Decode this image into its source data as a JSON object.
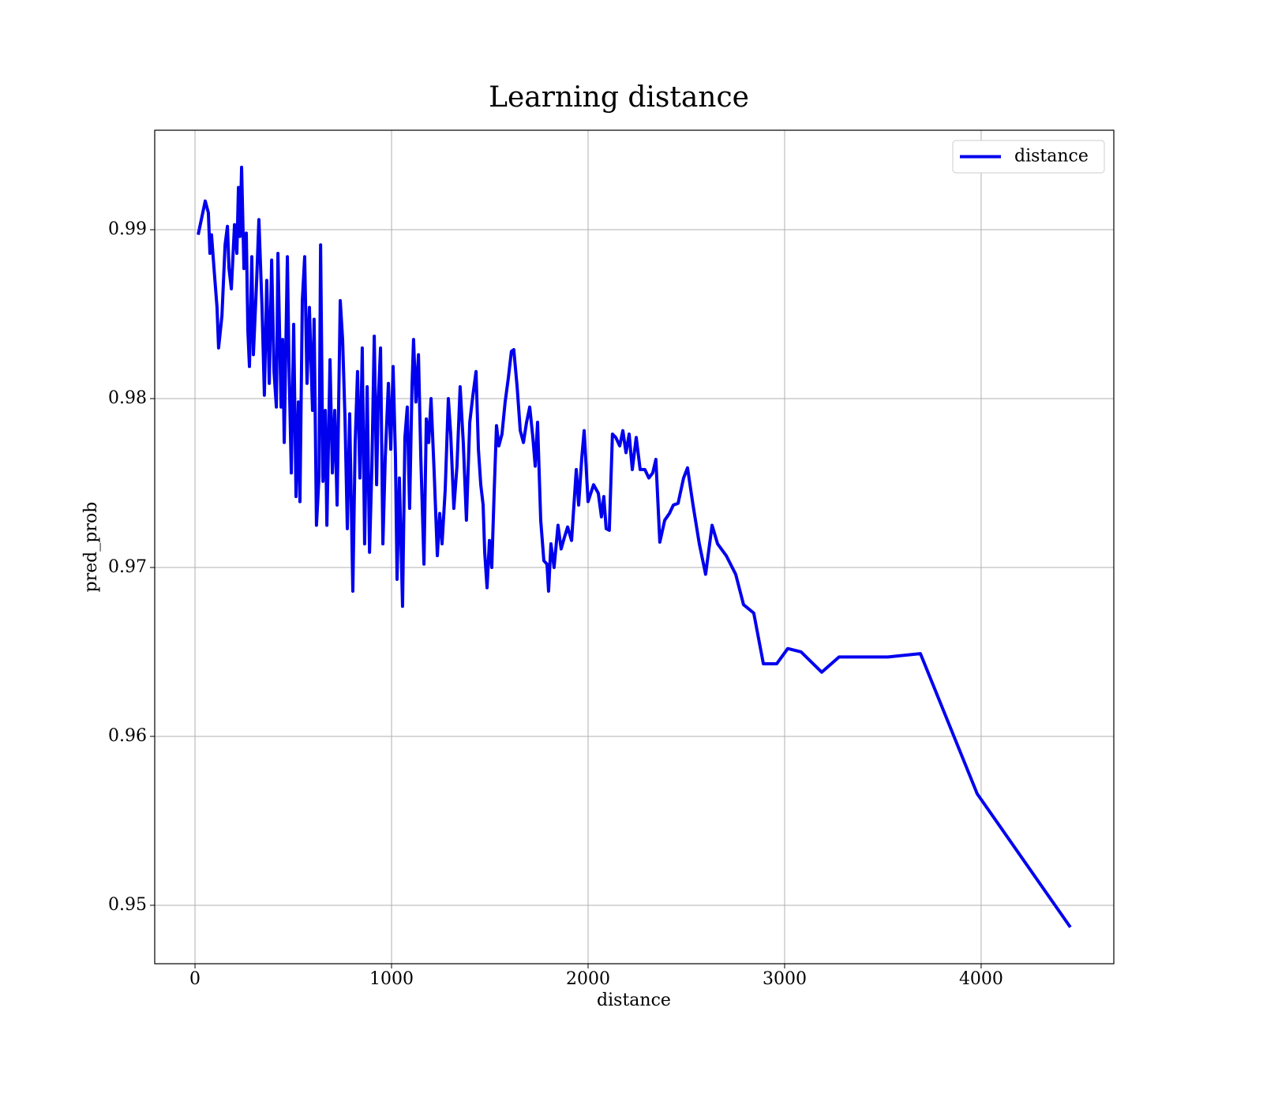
{
  "chart_data": {
    "type": "line",
    "title": "Learning distance",
    "x_label": "distance",
    "y_label": "pred_prob",
    "x": [
      16,
      52,
      68,
      76,
      84,
      100,
      112,
      120,
      137,
      153,
      165,
      173,
      185,
      201,
      213,
      221,
      229,
      237,
      249,
      261,
      269,
      277,
      289,
      297,
      313,
      325,
      341,
      353,
      365,
      378,
      390,
      402,
      414,
      422,
      438,
      446,
      454,
      470,
      478,
      490,
      502,
      514,
      526,
      534,
      546,
      558,
      570,
      582,
      598,
      606,
      618,
      631,
      639,
      651,
      663,
      671,
      687,
      699,
      711,
      723,
      739,
      751,
      763,
      775,
      787,
      803,
      815,
      827,
      839,
      851,
      863,
      876,
      888,
      900,
      912,
      924,
      932,
      944,
      956,
      968,
      984,
      996,
      1008,
      1020,
      1028,
      1040,
      1056,
      1068,
      1080,
      1092,
      1104,
      1112,
      1124,
      1137,
      1149,
      1165,
      1177,
      1189,
      1201,
      1217,
      1233,
      1245,
      1257,
      1273,
      1289,
      1301,
      1317,
      1333,
      1349,
      1365,
      1381,
      1398,
      1414,
      1430,
      1442,
      1454,
      1466,
      1474,
      1486,
      1498,
      1510,
      1522,
      1534,
      1546,
      1562,
      1578,
      1594,
      1610,
      1622,
      1639,
      1655,
      1671,
      1687,
      1703,
      1719,
      1731,
      1743,
      1759,
      1775,
      1791,
      1799,
      1811,
      1827,
      1847,
      1863,
      1880,
      1896,
      1916,
      1940,
      1952,
      1968,
      1980,
      2000,
      2028,
      2052,
      2068,
      2080,
      2092,
      2108,
      2124,
      2141,
      2161,
      2177,
      2193,
      2209,
      2225,
      2245,
      2265,
      2289,
      2309,
      2329,
      2345,
      2365,
      2390,
      2414,
      2434,
      2458,
      2486,
      2506,
      2534,
      2566,
      2598,
      2631,
      2659,
      2703,
      2751,
      2791,
      2843,
      2892,
      2960,
      3016,
      3084,
      3189,
      3277,
      3410,
      3526,
      3691,
      3980,
      4454
    ],
    "series": [
      {
        "name": "distance",
        "color": "#0000ee",
        "values": [
          0.9897,
          0.9917,
          0.991,
          0.9886,
          0.9897,
          0.9872,
          0.9854,
          0.983,
          0.9849,
          0.9891,
          0.9902,
          0.9877,
          0.9865,
          0.9903,
          0.9886,
          0.9925,
          0.9896,
          0.9937,
          0.9877,
          0.9898,
          0.984,
          0.9819,
          0.9884,
          0.9826,
          0.9868,
          0.9906,
          0.9854,
          0.9802,
          0.987,
          0.9809,
          0.9882,
          0.9816,
          0.9795,
          0.9886,
          0.9795,
          0.9835,
          0.9774,
          0.9884,
          0.9821,
          0.9756,
          0.9844,
          0.9742,
          0.9798,
          0.9739,
          0.9858,
          0.9884,
          0.9809,
          0.9854,
          0.9793,
          0.9847,
          0.9725,
          0.9754,
          0.9891,
          0.9751,
          0.9793,
          0.9725,
          0.9823,
          0.9756,
          0.9793,
          0.9737,
          0.9858,
          0.9835,
          0.9789,
          0.9723,
          0.9791,
          0.9686,
          0.9774,
          0.9816,
          0.9753,
          0.983,
          0.9714,
          0.9807,
          0.9709,
          0.976,
          0.9837,
          0.9749,
          0.9798,
          0.983,
          0.9714,
          0.9765,
          0.9809,
          0.977,
          0.9819,
          0.9765,
          0.9693,
          0.9753,
          0.9677,
          0.9777,
          0.9795,
          0.9735,
          0.9807,
          0.9835,
          0.9798,
          0.9826,
          0.9765,
          0.9702,
          0.9788,
          0.9774,
          0.98,
          0.9756,
          0.9707,
          0.9732,
          0.9714,
          0.9746,
          0.98,
          0.9779,
          0.9735,
          0.976,
          0.9807,
          0.9774,
          0.9728,
          0.9786,
          0.9802,
          0.9816,
          0.977,
          0.9749,
          0.9737,
          0.9709,
          0.9688,
          0.9716,
          0.97,
          0.9744,
          0.9784,
          0.9772,
          0.9779,
          0.9798,
          0.9812,
          0.9828,
          0.9829,
          0.9807,
          0.9781,
          0.9774,
          0.9786,
          0.9795,
          0.9777,
          0.976,
          0.9786,
          0.9728,
          0.9704,
          0.9702,
          0.9686,
          0.9714,
          0.97,
          0.9725,
          0.9711,
          0.9718,
          0.9724,
          0.9716,
          0.9758,
          0.9737,
          0.9765,
          0.9781,
          0.9739,
          0.9749,
          0.9744,
          0.973,
          0.9742,
          0.9723,
          0.9722,
          0.9779,
          0.9777,
          0.9772,
          0.9781,
          0.9768,
          0.9779,
          0.9758,
          0.9777,
          0.9758,
          0.9758,
          0.9753,
          0.9756,
          0.9764,
          0.9715,
          0.9728,
          0.9732,
          0.9737,
          0.9738,
          0.9753,
          0.9759,
          0.9737,
          0.9714,
          0.9696,
          0.9725,
          0.9714,
          0.9707,
          0.9696,
          0.9678,
          0.9673,
          0.9643,
          0.9643,
          0.9652,
          0.965,
          0.9638,
          0.9647,
          0.9647,
          0.9647,
          0.9649,
          0.9566,
          0.9487
        ]
      }
    ],
    "xlim": [
      -205,
      4675
    ],
    "xticks": [
      0,
      1000,
      2000,
      3000,
      4000
    ],
    "ylim": [
      0.94654,
      0.99589
    ],
    "yticks": [
      0.95,
      0.96,
      0.97,
      0.98,
      0.99
    ],
    "grid": true,
    "legend": "upper right"
  }
}
